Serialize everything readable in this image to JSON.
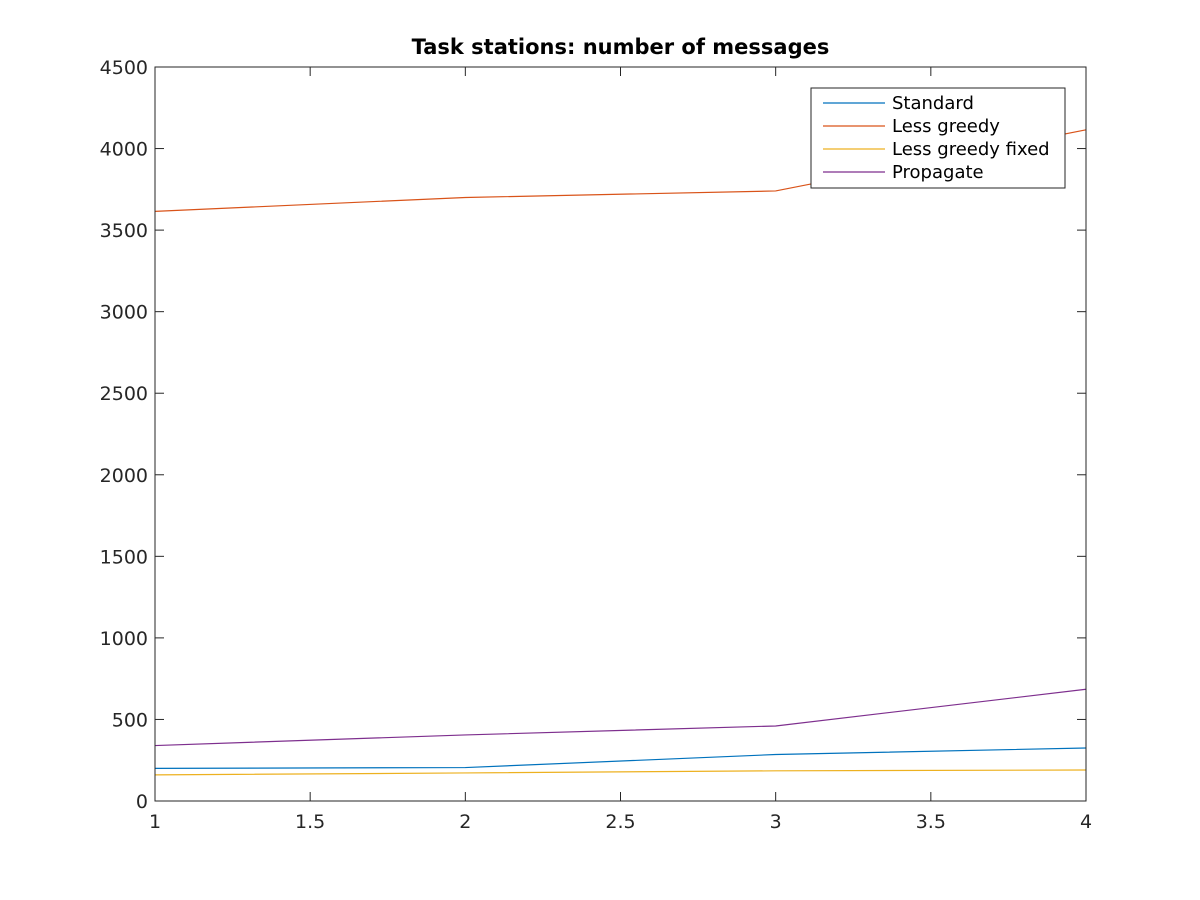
{
  "chart_data": {
    "type": "line",
    "title": "Task stations: number of messages",
    "xlabel": "",
    "ylabel": "",
    "xlim": [
      1,
      4
    ],
    "ylim": [
      0,
      4500
    ],
    "x_ticks": [
      1,
      1.5,
      2,
      2.5,
      3,
      3.5,
      4
    ],
    "x_tick_labels": [
      "1",
      "1.5",
      "2",
      "2.5",
      "3",
      "3.5",
      "4"
    ],
    "y_ticks": [
      0,
      500,
      1000,
      1500,
      2000,
      2500,
      3000,
      3500,
      4000,
      4500
    ],
    "y_tick_labels": [
      "0",
      "500",
      "1000",
      "1500",
      "2000",
      "2500",
      "3000",
      "3500",
      "4000",
      "4500"
    ],
    "grid": false,
    "legend_position": "top-right",
    "x": [
      1,
      2,
      3,
      4
    ],
    "series": [
      {
        "name": "Standard",
        "values": [
          200,
          205,
          285,
          325
        ],
        "color": "#0072BD"
      },
      {
        "name": "Less greedy",
        "values": [
          3615,
          3700,
          3740,
          4115
        ],
        "color": "#D95319"
      },
      {
        "name": "Less greedy fixed",
        "values": [
          160,
          172,
          185,
          190
        ],
        "color": "#EDB120"
      },
      {
        "name": "Propagate",
        "values": [
          340,
          405,
          460,
          685
        ],
        "color": "#7E2F8E"
      }
    ]
  }
}
